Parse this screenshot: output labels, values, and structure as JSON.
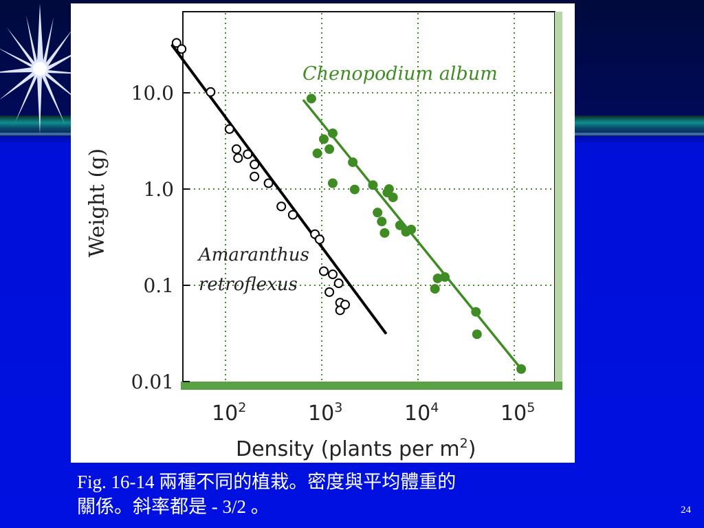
{
  "slide": {
    "caption_line1": "Fig. 16-14 兩種不同的植栽。密度與平均體重的",
    "caption_line2": "關係。斜率都是 - 3/2 。",
    "page_number": "24"
  },
  "colors": {
    "background": "#0010e0",
    "green_series": "#3f8c24",
    "green_axis": "#b7d7a8",
    "grid": "#3f8c24",
    "black_series": "#000000"
  },
  "chart_data": {
    "type": "scatter",
    "title": "",
    "xlabel": "Density (plants per m",
    "xlabel_sup": "2",
    "xlabel_close": ")",
    "ylabel": "Weight (g)",
    "xscale": "log",
    "yscale": "log",
    "xlim": [
      25,
      150000
    ],
    "ylim": [
      0.01,
      70
    ],
    "grid": true,
    "x_ticks": [
      {
        "value": 100,
        "base": "10",
        "exp": "2"
      },
      {
        "value": 1000,
        "base": "10",
        "exp": "3"
      },
      {
        "value": 10000,
        "base": "10",
        "exp": "4"
      },
      {
        "value": 100000,
        "base": "10",
        "exp": "5"
      }
    ],
    "y_ticks": [
      {
        "value": 10,
        "label": "10.0"
      },
      {
        "value": 1,
        "label": "1.0"
      },
      {
        "value": 0.1,
        "label": "0.1"
      },
      {
        "value": 0.01,
        "label": "0.01"
      }
    ],
    "series": [
      {
        "name": "Amaranthus retroflexus",
        "name_line1": "Amaranthus",
        "name_line2": "retroflexus",
        "marker": "open-circle",
        "points": [
          [
            31,
            33.0
          ],
          [
            35,
            28.5
          ],
          [
            70,
            10.2
          ],
          [
            110,
            4.2
          ],
          [
            130,
            2.6
          ],
          [
            135,
            2.1
          ],
          [
            170,
            2.3
          ],
          [
            200,
            1.8
          ],
          [
            200,
            1.35
          ],
          [
            280,
            1.15
          ],
          [
            380,
            0.66
          ],
          [
            500,
            0.54
          ],
          [
            850,
            0.34
          ],
          [
            950,
            0.3
          ],
          [
            1050,
            0.14
          ],
          [
            1200,
            0.085
          ],
          [
            1300,
            0.13
          ],
          [
            1500,
            0.105
          ],
          [
            1550,
            0.066
          ],
          [
            1550,
            0.055
          ],
          [
            1750,
            0.063
          ]
        ],
        "fit_line": [
          [
            28,
            31.0
          ],
          [
            4600,
            0.032
          ]
        ]
      },
      {
        "name": "Chenopodium album",
        "marker": "filled-circle",
        "points": [
          [
            780,
            8.7
          ],
          [
            900,
            2.35
          ],
          [
            1050,
            3.3
          ],
          [
            1200,
            2.6
          ],
          [
            1300,
            3.8
          ],
          [
            1300,
            1.15
          ],
          [
            2100,
            1.9
          ],
          [
            2200,
            0.99
          ],
          [
            3400,
            1.1
          ],
          [
            3800,
            0.57
          ],
          [
            4200,
            0.46
          ],
          [
            4500,
            0.35
          ],
          [
            4800,
            0.92
          ],
          [
            5000,
            1.0
          ],
          [
            5500,
            0.82
          ],
          [
            6500,
            0.42
          ],
          [
            7500,
            0.36
          ],
          [
            8500,
            0.38
          ],
          [
            15000,
            0.092
          ],
          [
            16000,
            0.118
          ],
          [
            19000,
            0.122
          ],
          [
            40000,
            0.053
          ],
          [
            41000,
            0.031
          ],
          [
            118000,
            0.0135
          ]
        ],
        "fit_line": [
          [
            650,
            8.3
          ],
          [
            118000,
            0.0135
          ]
        ]
      }
    ]
  }
}
